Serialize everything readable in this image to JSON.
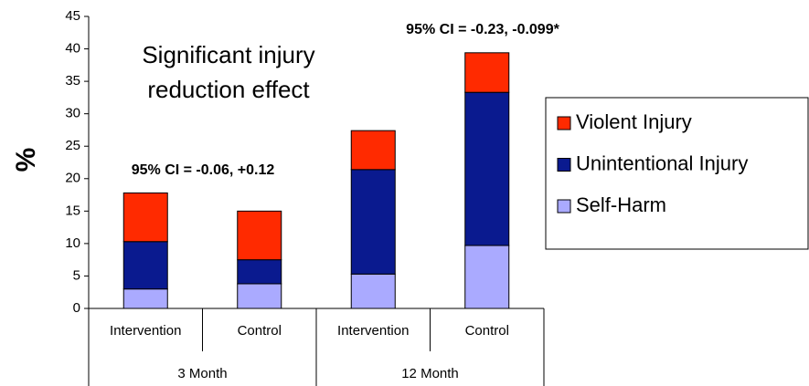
{
  "chart_data": {
    "type": "stacked_bar",
    "y_label": "%",
    "annotations": [
      "Significant injury",
      "reduction effect",
      "95% CI = -0.06, +0.12",
      "95% CI = -0.23, -0.099*"
    ],
    "categories": [
      "Intervention",
      "Control",
      "Intervention",
      "Control"
    ],
    "groups": [
      "3 Month",
      "12 Month"
    ],
    "series": [
      {
        "name": "Self-Harm",
        "color": "#aaaaff",
        "values": [
          3,
          3.8,
          5.3,
          9.7
        ]
      },
      {
        "name": "Unintentional Injury",
        "color": "#0a1a8f",
        "values": [
          7.3,
          3.7,
          16.1,
          23.6
        ]
      },
      {
        "name": "Violent Injury",
        "color": "#ff2a00",
        "values": [
          7.5,
          7.5,
          6.0,
          6.1
        ]
      }
    ],
    "ylim": [
      0,
      45
    ],
    "yticks": [
      0,
      5,
      10,
      15,
      20,
      25,
      30,
      35,
      40,
      45
    ],
    "legend": "right"
  }
}
